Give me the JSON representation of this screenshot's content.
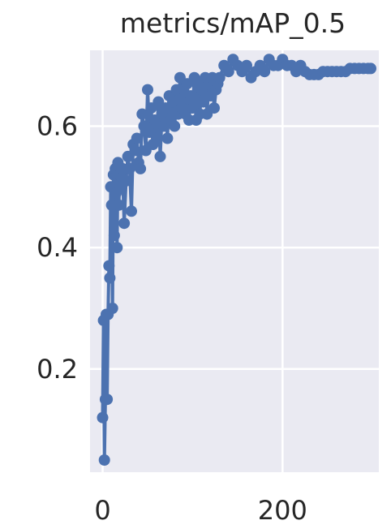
{
  "chart_data": {
    "type": "line",
    "title": "metrics/mAP_0.5",
    "xlabel": "",
    "ylabel": "",
    "xlim": [
      -14,
      307
    ],
    "ylim": [
      0.03,
      0.725
    ],
    "x_ticks": [
      0,
      200
    ],
    "x_tick_labels": [
      "0",
      "200"
    ],
    "y_ticks": [
      0.2,
      0.4,
      0.6
    ],
    "y_tick_labels": [
      "0.2",
      "0.4",
      "0.6"
    ],
    "grid": true,
    "legend": "none",
    "colors": {
      "line": "#4c72b0",
      "background": "#eaeaf2",
      "grid": "#ffffff",
      "text": "#262626"
    },
    "series": [
      {
        "x": [
          0,
          1,
          2,
          3,
          4,
          5,
          6,
          7,
          8,
          9,
          10,
          11,
          12,
          13,
          14,
          15,
          16,
          17,
          18,
          19,
          20,
          22,
          24,
          26,
          28,
          30,
          32,
          34,
          36,
          38,
          40,
          42,
          44,
          46,
          48,
          50,
          52,
          54,
          56,
          58,
          60,
          62,
          64,
          66,
          68,
          70,
          72,
          74,
          76,
          78,
          80,
          82,
          84,
          86,
          88,
          90,
          92,
          94,
          96,
          98,
          100,
          102,
          104,
          106,
          108,
          110,
          112,
          114,
          116,
          118,
          120,
          122,
          124,
          126,
          128,
          130,
          135,
          140,
          145,
          150,
          155,
          160,
          165,
          170,
          175,
          180,
          185,
          190,
          195,
          200,
          205,
          210,
          215,
          220,
          225,
          230,
          235,
          240,
          245,
          250,
          255,
          260,
          265,
          270,
          275,
          280,
          285,
          290,
          295,
          298
        ],
        "y": [
          0.12,
          0.28,
          0.05,
          0.15,
          0.29,
          0.15,
          0.29,
          0.37,
          0.35,
          0.5,
          0.47,
          0.3,
          0.52,
          0.42,
          0.53,
          0.49,
          0.4,
          0.54,
          0.47,
          0.52,
          0.5,
          0.53,
          0.44,
          0.51,
          0.55,
          0.53,
          0.46,
          0.57,
          0.56,
          0.58,
          0.54,
          0.53,
          0.62,
          0.6,
          0.56,
          0.66,
          0.59,
          0.63,
          0.57,
          0.61,
          0.58,
          0.64,
          0.55,
          0.62,
          0.6,
          0.63,
          0.58,
          0.65,
          0.61,
          0.64,
          0.6,
          0.66,
          0.62,
          0.68,
          0.63,
          0.66,
          0.62,
          0.67,
          0.61,
          0.65,
          0.63,
          0.68,
          0.61,
          0.67,
          0.62,
          0.66,
          0.64,
          0.68,
          0.62,
          0.67,
          0.65,
          0.68,
          0.63,
          0.66,
          0.67,
          0.68,
          0.7,
          0.69,
          0.71,
          0.7,
          0.69,
          0.7,
          0.68,
          0.69,
          0.7,
          0.69,
          0.71,
          0.7,
          0.7,
          0.71,
          0.7,
          0.7,
          0.69,
          0.7,
          0.69,
          0.685,
          0.685,
          0.685,
          0.69,
          0.69,
          0.69,
          0.69,
          0.69,
          0.69,
          0.695,
          0.695,
          0.695,
          0.695,
          0.695,
          0.695
        ]
      }
    ]
  }
}
